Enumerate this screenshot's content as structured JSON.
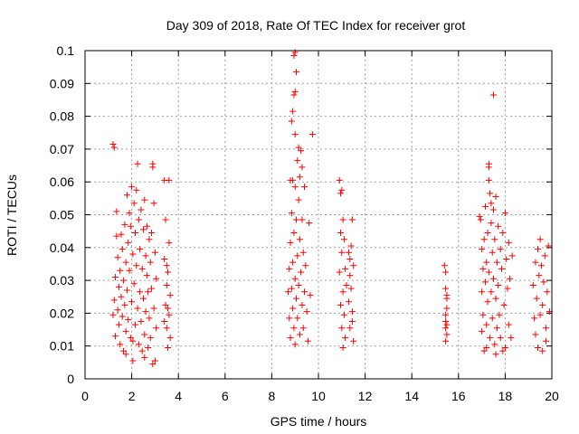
{
  "chart_data": {
    "type": "scatter",
    "title": "Day 309 of 2018, Rate Of TEC Index for receiver grot",
    "xlabel": "GPS time / hours",
    "ylabel": "ROTI / TECUs",
    "xlim": [
      0,
      20
    ],
    "ylim": [
      0,
      0.1
    ],
    "xticks": [
      0,
      2,
      4,
      6,
      8,
      10,
      12,
      14,
      16,
      18,
      20
    ],
    "xtick_labels": [
      "0",
      "2",
      "4",
      "6",
      "8",
      "10",
      "12",
      "14",
      "16",
      "18",
      "20"
    ],
    "yticks": [
      0,
      0.01,
      0.02,
      0.03,
      0.04,
      0.05,
      0.06,
      0.07,
      0.08,
      0.09,
      0.1
    ],
    "ytick_labels": [
      "0",
      "0.01",
      "0.02",
      "0.03",
      "0.04",
      "0.05",
      "0.06",
      "0.07",
      "0.08",
      "0.09",
      "0.1"
    ],
    "grid": true,
    "marker": "+",
    "marker_color": "#ff0000",
    "series": [
      {
        "name": "ROTI",
        "points": [
          [
            1.2,
            0.0715
          ],
          [
            1.25,
            0.0705
          ],
          [
            1.2,
            0.0195
          ],
          [
            1.25,
            0.024
          ],
          [
            1.3,
            0.031
          ],
          [
            1.3,
            0.013
          ],
          [
            1.35,
            0.0435
          ],
          [
            1.35,
            0.051
          ],
          [
            1.4,
            0.037
          ],
          [
            1.4,
            0.021
          ],
          [
            1.45,
            0.028
          ],
          [
            1.45,
            0.0165
          ],
          [
            1.5,
            0.033
          ],
          [
            1.5,
            0.0105
          ],
          [
            1.55,
            0.044
          ],
          [
            1.55,
            0.025
          ],
          [
            1.6,
            0.019
          ],
          [
            1.6,
            0.0395
          ],
          [
            1.65,
            0.0085
          ],
          [
            1.65,
            0.03
          ],
          [
            1.7,
            0.047
          ],
          [
            1.7,
            0.0225
          ],
          [
            1.75,
            0.0355
          ],
          [
            1.75,
            0.0145
          ],
          [
            1.8,
            0.056
          ],
          [
            1.8,
            0.027
          ],
          [
            1.85,
            0.0415
          ],
          [
            1.85,
            0.018
          ],
          [
            1.9,
            0.0505
          ],
          [
            1.9,
            0.033
          ],
          [
            1.95,
            0.0125
          ],
          [
            1.95,
            0.0465
          ],
          [
            2.0,
            0.0585
          ],
          [
            2.0,
            0.0235
          ],
          [
            2.05,
            0.038
          ],
          [
            2.05,
            0.0055
          ],
          [
            2.1,
            0.0535
          ],
          [
            2.1,
            0.029
          ],
          [
            2.15,
            0.0165
          ],
          [
            2.15,
            0.0445
          ],
          [
            2.2,
            0.0575
          ],
          [
            2.2,
            0.0345
          ],
          [
            2.25,
            0.0215
          ],
          [
            2.25,
            0.0655
          ],
          [
            2.3,
            0.0485
          ],
          [
            2.3,
            0.0105
          ],
          [
            2.35,
            0.0395
          ],
          [
            2.35,
            0.0265
          ],
          [
            2.4,
            0.0515
          ],
          [
            2.4,
            0.0175
          ],
          [
            2.45,
            0.0335
          ],
          [
            2.45,
            0.0085
          ],
          [
            2.5,
            0.0455
          ],
          [
            2.5,
            0.0245
          ],
          [
            2.55,
            0.0545
          ],
          [
            2.55,
            0.0135
          ],
          [
            2.6,
            0.0375
          ],
          [
            2.6,
            0.0205
          ],
          [
            2.65,
            0.0465
          ],
          [
            2.65,
            0.0315
          ],
          [
            2.7,
            0.0095
          ],
          [
            2.7,
            0.0265
          ],
          [
            2.75,
            0.0425
          ],
          [
            2.75,
            0.0185
          ],
          [
            2.8,
            0.0355
          ],
          [
            2.8,
            0.0125
          ],
          [
            2.85,
            0.0445
          ],
          [
            2.85,
            0.0275
          ],
          [
            2.9,
            0.0655
          ],
          [
            2.9,
            0.0645
          ],
          [
            2.95,
            0.0535
          ],
          [
            2.95,
            0.0215
          ],
          [
            3.0,
            0.0385
          ],
          [
            3.0,
            0.0055
          ],
          [
            3.05,
            0.0305
          ],
          [
            3.05,
            0.0155
          ],
          [
            1.75,
            0.0075
          ],
          [
            2.05,
            0.0115
          ],
          [
            2.55,
            0.0065
          ],
          [
            2.9,
            0.0045
          ],
          [
            3.4,
            0.0605
          ],
          [
            3.45,
            0.0485
          ],
          [
            3.4,
            0.0365
          ],
          [
            3.45,
            0.0225
          ],
          [
            3.5,
            0.0285
          ],
          [
            3.5,
            0.0155
          ],
          [
            3.55,
            0.0325
          ],
          [
            3.55,
            0.0095
          ],
          [
            3.6,
            0.0415
          ],
          [
            3.6,
            0.0195
          ],
          [
            3.65,
            0.0255
          ],
          [
            3.65,
            0.0125
          ],
          [
            3.5,
            0.0345
          ],
          [
            3.4,
            0.0175
          ],
          [
            3.55,
            0.0215
          ],
          [
            3.6,
            0.0605
          ],
          [
            8.7,
            0.0265
          ],
          [
            8.75,
            0.0335
          ],
          [
            8.75,
            0.0185
          ],
          [
            8.8,
            0.0415
          ],
          [
            8.8,
            0.0125
          ],
          [
            8.85,
            0.0505
          ],
          [
            8.85,
            0.0275
          ],
          [
            8.9,
            0.0815
          ],
          [
            8.9,
            0.0605
          ],
          [
            8.9,
            0.0355
          ],
          [
            8.9,
            0.0215
          ],
          [
            8.95,
            0.0985
          ],
          [
            8.95,
            0.0865
          ],
          [
            8.95,
            0.0445
          ],
          [
            8.95,
            0.0155
          ],
          [
            9.0,
            0.0995
          ],
          [
            9.0,
            0.0745
          ],
          [
            9.0,
            0.0585
          ],
          [
            9.0,
            0.0305
          ],
          [
            9.0,
            0.0105
          ],
          [
            9.05,
            0.0935
          ],
          [
            9.05,
            0.0485
          ],
          [
            9.05,
            0.0245
          ],
          [
            9.1,
            0.0665
          ],
          [
            9.1,
            0.0375
          ],
          [
            9.1,
            0.0185
          ],
          [
            9.15,
            0.0545
          ],
          [
            9.15,
            0.0285
          ],
          [
            9.2,
            0.0425
          ],
          [
            9.2,
            0.0135
          ],
          [
            9.25,
            0.0695
          ],
          [
            9.25,
            0.0325
          ],
          [
            9.3,
            0.0645
          ],
          [
            9.3,
            0.0225
          ],
          [
            9.35,
            0.0385
          ],
          [
            9.35,
            0.0155
          ],
          [
            9.4,
            0.0585
          ],
          [
            9.4,
            0.0265
          ],
          [
            9.45,
            0.0345
          ],
          [
            9.5,
            0.0205
          ],
          [
            9.6,
            0.0475
          ],
          [
            9.55,
            0.0115
          ],
          [
            9.65,
            0.0255
          ],
          [
            9.75,
            0.0745
          ],
          [
            8.85,
            0.0785
          ],
          [
            8.8,
            0.0605
          ],
          [
            9.15,
            0.0705
          ],
          [
            9.2,
            0.0615
          ],
          [
            9.3,
            0.0485
          ],
          [
            9.0,
            0.0875
          ],
          [
            10.9,
            0.0605
          ],
          [
            10.95,
            0.0565
          ],
          [
            10.95,
            0.0445
          ],
          [
            10.9,
            0.0325
          ],
          [
            10.95,
            0.0225
          ],
          [
            11.0,
            0.0575
          ],
          [
            11.0,
            0.0385
          ],
          [
            11.0,
            0.0155
          ],
          [
            11.05,
            0.0485
          ],
          [
            11.05,
            0.0265
          ],
          [
            11.05,
            0.0095
          ],
          [
            11.1,
            0.0425
          ],
          [
            11.1,
            0.0195
          ],
          [
            11.15,
            0.0335
          ],
          [
            11.15,
            0.0125
          ],
          [
            11.2,
            0.0285
          ],
          [
            11.3,
            0.0385
          ],
          [
            11.3,
            0.0235
          ],
          [
            11.35,
            0.0315
          ],
          [
            11.35,
            0.0155
          ],
          [
            11.4,
            0.0405
          ],
          [
            11.4,
            0.0275
          ],
          [
            11.45,
            0.0485
          ],
          [
            11.45,
            0.0205
          ],
          [
            11.5,
            0.0345
          ],
          [
            11.5,
            0.0115
          ],
          [
            11.45,
            0.0175
          ],
          [
            11.35,
            0.0365
          ],
          [
            15.4,
            0.0345
          ],
          [
            15.45,
            0.0325
          ],
          [
            15.45,
            0.0275
          ],
          [
            15.5,
            0.0245
          ],
          [
            15.5,
            0.0215
          ],
          [
            15.45,
            0.0195
          ],
          [
            15.5,
            0.0165
          ],
          [
            15.45,
            0.0155
          ],
          [
            15.5,
            0.0135
          ],
          [
            15.45,
            0.0115
          ],
          [
            15.5,
            0.0255
          ],
          [
            15.45,
            0.0175
          ],
          [
            16.9,
            0.0495
          ],
          [
            16.95,
            0.0485
          ],
          [
            17.0,
            0.0395
          ],
          [
            17.0,
            0.0265
          ],
          [
            17.0,
            0.0145
          ],
          [
            17.05,
            0.0335
          ],
          [
            17.05,
            0.0195
          ],
          [
            17.1,
            0.0425
          ],
          [
            17.1,
            0.0085
          ],
          [
            17.15,
            0.0525
          ],
          [
            17.15,
            0.0295
          ],
          [
            17.2,
            0.0355
          ],
          [
            17.2,
            0.0165
          ],
          [
            17.25,
            0.0445
          ],
          [
            17.25,
            0.0235
          ],
          [
            17.3,
            0.0655
          ],
          [
            17.3,
            0.0605
          ],
          [
            17.3,
            0.0325
          ],
          [
            17.35,
            0.0565
          ],
          [
            17.35,
            0.0125
          ],
          [
            17.4,
            0.0475
          ],
          [
            17.4,
            0.0265
          ],
          [
            17.45,
            0.0385
          ],
          [
            17.45,
            0.0185
          ],
          [
            17.5,
            0.0865
          ],
          [
            17.5,
            0.0515
          ],
          [
            17.5,
            0.0305
          ],
          [
            17.55,
            0.0425
          ],
          [
            17.55,
            0.0105
          ],
          [
            17.6,
            0.0555
          ],
          [
            17.6,
            0.0245
          ],
          [
            17.65,
            0.0355
          ],
          [
            17.65,
            0.0155
          ],
          [
            17.7,
            0.0465
          ],
          [
            17.7,
            0.0285
          ],
          [
            17.75,
            0.0195
          ],
          [
            17.8,
            0.0395
          ],
          [
            17.8,
            0.0125
          ],
          [
            17.85,
            0.0335
          ],
          [
            17.9,
            0.0445
          ],
          [
            17.95,
            0.0225
          ],
          [
            18.0,
            0.0505
          ],
          [
            18.0,
            0.0095
          ],
          [
            18.05,
            0.0365
          ],
          [
            18.1,
            0.0275
          ],
          [
            18.15,
            0.0415
          ],
          [
            18.15,
            0.0165
          ],
          [
            18.2,
            0.0305
          ],
          [
            18.25,
            0.0125
          ],
          [
            18.3,
            0.0375
          ],
          [
            17.2,
            0.0095
          ],
          [
            17.6,
            0.0075
          ],
          [
            17.9,
            0.0085
          ],
          [
            17.3,
            0.0645
          ],
          [
            17.4,
            0.0535
          ],
          [
            19.2,
            0.0285
          ],
          [
            19.25,
            0.0185
          ],
          [
            19.3,
            0.0355
          ],
          [
            19.3,
            0.0135
          ],
          [
            19.35,
            0.0245
          ],
          [
            19.4,
            0.0395
          ],
          [
            19.4,
            0.0095
          ],
          [
            19.45,
            0.0315
          ],
          [
            19.5,
            0.0195
          ],
          [
            19.55,
            0.0345
          ],
          [
            19.6,
            0.0225
          ],
          [
            19.6,
            0.0085
          ],
          [
            19.65,
            0.0295
          ],
          [
            19.7,
            0.0375
          ],
          [
            19.75,
            0.0155
          ],
          [
            19.8,
            0.0265
          ],
          [
            19.85,
            0.0405
          ],
          [
            19.9,
            0.0205
          ],
          [
            19.75,
            0.0115
          ],
          [
            19.5,
            0.0425
          ]
        ]
      }
    ]
  }
}
